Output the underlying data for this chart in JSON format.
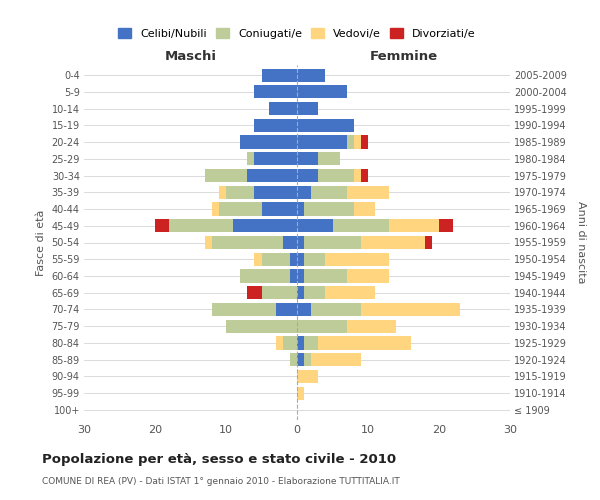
{
  "age_groups": [
    "100+",
    "95-99",
    "90-94",
    "85-89",
    "80-84",
    "75-79",
    "70-74",
    "65-69",
    "60-64",
    "55-59",
    "50-54",
    "45-49",
    "40-44",
    "35-39",
    "30-34",
    "25-29",
    "20-24",
    "15-19",
    "10-14",
    "5-9",
    "0-4"
  ],
  "birth_years": [
    "≤ 1909",
    "1910-1914",
    "1915-1919",
    "1920-1924",
    "1925-1929",
    "1930-1934",
    "1935-1939",
    "1940-1944",
    "1945-1949",
    "1950-1954",
    "1955-1959",
    "1960-1964",
    "1965-1969",
    "1970-1974",
    "1975-1979",
    "1980-1984",
    "1985-1989",
    "1990-1994",
    "1995-1999",
    "2000-2004",
    "2005-2009"
  ],
  "males": {
    "celibi": [
      0,
      0,
      0,
      0,
      0,
      0,
      3,
      0,
      1,
      1,
      2,
      9,
      5,
      6,
      7,
      6,
      8,
      6,
      4,
      6,
      5
    ],
    "coniugati": [
      0,
      0,
      0,
      1,
      2,
      10,
      9,
      5,
      7,
      4,
      10,
      9,
      6,
      4,
      6,
      1,
      0,
      0,
      0,
      0,
      0
    ],
    "vedovi": [
      0,
      0,
      0,
      0,
      1,
      0,
      0,
      0,
      0,
      1,
      1,
      0,
      1,
      1,
      0,
      0,
      0,
      0,
      0,
      0,
      0
    ],
    "divorziati": [
      0,
      0,
      0,
      0,
      0,
      0,
      0,
      2,
      0,
      0,
      0,
      2,
      0,
      0,
      0,
      0,
      0,
      0,
      0,
      0,
      0
    ]
  },
  "females": {
    "nubili": [
      0,
      0,
      0,
      1,
      1,
      0,
      2,
      1,
      1,
      1,
      1,
      5,
      1,
      2,
      3,
      3,
      7,
      8,
      3,
      7,
      4
    ],
    "coniugate": [
      0,
      0,
      0,
      1,
      2,
      7,
      7,
      3,
      6,
      3,
      8,
      8,
      7,
      5,
      5,
      3,
      1,
      0,
      0,
      0,
      0
    ],
    "vedove": [
      0,
      1,
      3,
      7,
      13,
      7,
      14,
      7,
      6,
      9,
      9,
      7,
      3,
      6,
      1,
      0,
      1,
      0,
      0,
      0,
      0
    ],
    "divorziate": [
      0,
      0,
      0,
      0,
      0,
      0,
      0,
      0,
      0,
      0,
      1,
      2,
      0,
      0,
      1,
      0,
      1,
      0,
      0,
      0,
      0
    ]
  },
  "colors": {
    "celibi_nubili": "#4472C4",
    "coniugati": "#BDCC99",
    "vedovi": "#FFD57F",
    "divorziati": "#CC2222"
  },
  "xlim": 30,
  "title": "Popolazione per età, sesso e stato civile - 2010",
  "subtitle": "COMUNE DI REA (PV) - Dati ISTAT 1° gennaio 2010 - Elaborazione TUTTITALIA.IT",
  "ylabel_left": "Fasce di età",
  "ylabel_right": "Anni di nascita",
  "xlabel_left": "Maschi",
  "xlabel_right": "Femmine"
}
